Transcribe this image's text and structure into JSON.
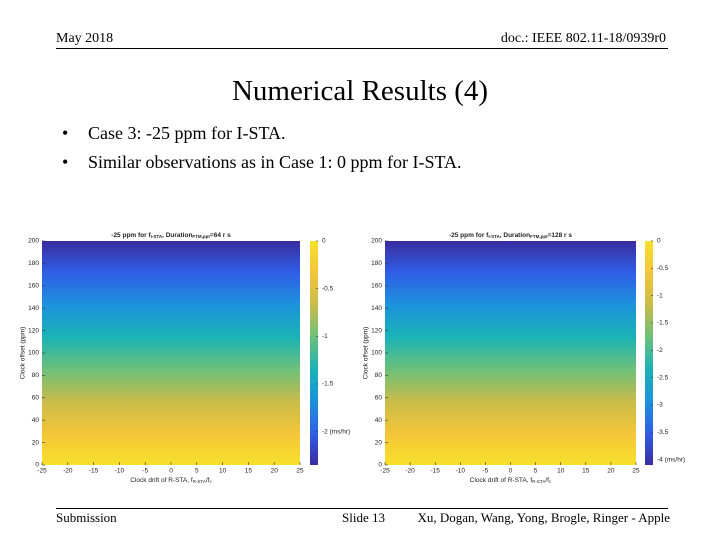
{
  "header": {
    "date": "May 2018",
    "doc": "doc.: IEEE 802.11-18/0939r0"
  },
  "title": "Numerical Results (4)",
  "bullets": [
    "Case 3: -25 ppm for I-STA.",
    "Similar observations as in Case 1: 0 ppm for I-STA."
  ],
  "footer": {
    "left": "Submission",
    "center": "Slide 13",
    "right": "Xu, Dogan, Wang, Yong, Brogle, Ringer - Apple"
  },
  "chart_data": [
    {
      "type": "heatmap",
      "title_parts": [
        "-25 ppm for f",
        "I-STA",
        ", Duration",
        "FTM,ppt",
        "=64 r s"
      ],
      "xlabel_parts": [
        "Clock drift of R-STA, f",
        "R-STA",
        "/f",
        "c"
      ],
      "ylabel": "Clock offset (ppm)",
      "xlim": [
        -25,
        25
      ],
      "xticks": [
        -25,
        -20,
        -15,
        -10,
        -5,
        0,
        5,
        10,
        15,
        20,
        25
      ],
      "ylim": [
        0,
        200
      ],
      "yticks": [
        0,
        20,
        40,
        60,
        80,
        100,
        120,
        140,
        160,
        180,
        200
      ],
      "clim": [
        -2.35,
        0
      ],
      "cticks": [
        0,
        -0.5,
        -1,
        -1.5,
        {
          "value": -2,
          "label": "-2 (ms/hr)"
        }
      ],
      "colormap": [
        "#3a2ca0",
        "#2f5fe6",
        "#1c92dc",
        "#1ab3b6",
        "#6cc07a",
        "#c9bc4a",
        "#f3c53a",
        "#f7e02a"
      ]
    },
    {
      "type": "heatmap",
      "title_parts": [
        "-25 ppm for f",
        "I-STA",
        ", Duration",
        "FTM,ppt",
        "=128 r s"
      ],
      "xlabel_parts": [
        "Clock drift of R-STA, f",
        "R-STA",
        "/f",
        "c"
      ],
      "ylabel": "Clock offset (ppm)",
      "xlim": [
        -25,
        25
      ],
      "xticks": [
        -25,
        -20,
        -15,
        -10,
        -5,
        0,
        5,
        10,
        15,
        20,
        25
      ],
      "ylim": [
        0,
        200
      ],
      "yticks": [
        0,
        20,
        40,
        60,
        80,
        100,
        120,
        140,
        160,
        180,
        200
      ],
      "clim": [
        -4.1,
        0
      ],
      "cticks": [
        0,
        -0.5,
        -1,
        -1.5,
        -2,
        -2.5,
        -3,
        -3.5,
        {
          "value": -4,
          "label": "-4 (ms/hr)"
        }
      ],
      "colormap": [
        "#3a2ca0",
        "#2f5fe6",
        "#1c92dc",
        "#1ab3b6",
        "#6cc07a",
        "#c9bc4a",
        "#f3c53a",
        "#f7e02a"
      ]
    }
  ]
}
